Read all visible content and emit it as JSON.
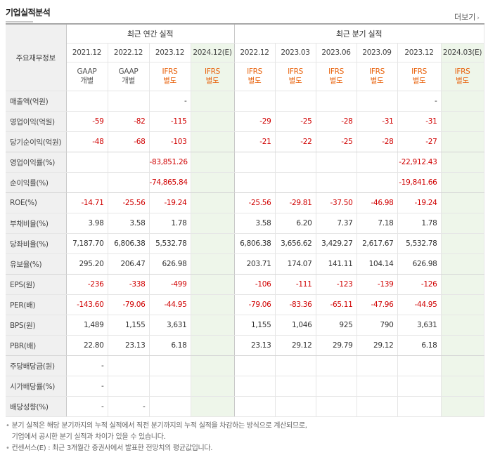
{
  "title": "기업실적분석",
  "more_label": "더보기",
  "header": {
    "row_label": "주요재무정보",
    "annual_group": "최근 연간 실적",
    "quarter_group": "최근 분기 실적",
    "annual_periods": [
      "2021.12",
      "2022.12",
      "2023.12",
      "2024.12(E)"
    ],
    "quarter_periods": [
      "2022.12",
      "2023.03",
      "2023.06",
      "2023.09",
      "2023.12",
      "2024.03(E)"
    ],
    "annual_standards": [
      {
        "std": "GAAP",
        "type": "개별"
      },
      {
        "std": "GAAP",
        "type": "개별"
      },
      {
        "std": "IFRS",
        "type": "별도"
      },
      {
        "std": "IFRS",
        "type": "별도"
      }
    ],
    "quarter_standards": [
      {
        "std": "IFRS",
        "type": "별도"
      },
      {
        "std": "IFRS",
        "type": "별도"
      },
      {
        "std": "IFRS",
        "type": "별도"
      },
      {
        "std": "IFRS",
        "type": "별도"
      },
      {
        "std": "IFRS",
        "type": "별도"
      },
      {
        "std": "IFRS",
        "type": "별도"
      }
    ]
  },
  "rows": [
    {
      "label": "매출액(억원)",
      "annual": [
        "",
        "",
        "-",
        ""
      ],
      "quarter": [
        "",
        "",
        "",
        "",
        "-",
        ""
      ]
    },
    {
      "label": "영업이익(억원)",
      "annual": [
        "-59",
        "-82",
        "-115",
        ""
      ],
      "quarter": [
        "-29",
        "-25",
        "-28",
        "-31",
        "-31",
        ""
      ]
    },
    {
      "label": "당기순이익(억원)",
      "annual": [
        "-48",
        "-68",
        "-103",
        ""
      ],
      "quarter": [
        "-21",
        "-22",
        "-25",
        "-28",
        "-27",
        ""
      ]
    },
    {
      "label": "영업이익률(%)",
      "annual": [
        "",
        "",
        "-83,851.26",
        ""
      ],
      "quarter": [
        "",
        "",
        "",
        "",
        "-22,912.43",
        ""
      ]
    },
    {
      "label": "순이익률(%)",
      "annual": [
        "",
        "",
        "-74,865.84",
        ""
      ],
      "quarter": [
        "",
        "",
        "",
        "",
        "-19,841.66",
        ""
      ]
    },
    {
      "label": "ROE(%)",
      "annual": [
        "-14.71",
        "-25.56",
        "-19.24",
        ""
      ],
      "quarter": [
        "-25.56",
        "-29.81",
        "-37.50",
        "-46.98",
        "-19.24",
        ""
      ]
    },
    {
      "label": "부채비율(%)",
      "annual": [
        "3.98",
        "3.58",
        "1.78",
        ""
      ],
      "quarter": [
        "3.58",
        "6.20",
        "7.37",
        "7.18",
        "1.78",
        ""
      ]
    },
    {
      "label": "당좌비율(%)",
      "annual": [
        "7,187.70",
        "6,806.38",
        "5,532.78",
        ""
      ],
      "quarter": [
        "6,806.38",
        "3,656.62",
        "3,429.27",
        "2,617.67",
        "5,532.78",
        ""
      ]
    },
    {
      "label": "유보율(%)",
      "annual": [
        "295.20",
        "206.47",
        "626.98",
        ""
      ],
      "quarter": [
        "203.71",
        "174.07",
        "141.11",
        "104.14",
        "626.98",
        ""
      ]
    },
    {
      "label": "EPS(원)",
      "annual": [
        "-236",
        "-338",
        "-499",
        ""
      ],
      "quarter": [
        "-106",
        "-111",
        "-123",
        "-139",
        "-126",
        ""
      ]
    },
    {
      "label": "PER(배)",
      "annual": [
        "-143.60",
        "-79.06",
        "-44.95",
        ""
      ],
      "quarter": [
        "-79.06",
        "-83.36",
        "-65.11",
        "-47.96",
        "-44.95",
        ""
      ]
    },
    {
      "label": "BPS(원)",
      "annual": [
        "1,489",
        "1,155",
        "3,631",
        ""
      ],
      "quarter": [
        "1,155",
        "1,046",
        "925",
        "790",
        "3,631",
        ""
      ]
    },
    {
      "label": "PBR(배)",
      "annual": [
        "22.80",
        "23.13",
        "6.18",
        ""
      ],
      "quarter": [
        "23.13",
        "29.12",
        "29.79",
        "29.12",
        "6.18",
        ""
      ]
    },
    {
      "label": "주당배당금(원)",
      "annual": [
        "-",
        "",
        "",
        ""
      ],
      "quarter": [
        "",
        "",
        "",
        "",
        "",
        ""
      ]
    },
    {
      "label": "시가배당률(%)",
      "annual": [
        "-",
        "",
        "",
        ""
      ],
      "quarter": [
        "",
        "",
        "",
        "",
        "",
        ""
      ]
    },
    {
      "label": "배당성향(%)",
      "annual": [
        "-",
        "-",
        "",
        ""
      ],
      "quarter": [
        "",
        "",
        "",
        "",
        "",
        ""
      ]
    }
  ],
  "notes": [
    "분기 실적은 해당 분기까지의 누적 실적에서 직전 분기까지의 누적 실적을 차감하는 방식으로 계산되므로,",
    "기업에서 공시한 분기 실적과 차이가 있을 수 있습니다.",
    "컨센서스(E) : 최근 3개월간 증권사에서 발표한 전망치의 평균값입니다."
  ],
  "colors": {
    "negative": "#d00000",
    "ifrs": "#e8610b",
    "estimate_bg": "#eef6ea",
    "label_bg": "#f0f0f0"
  }
}
